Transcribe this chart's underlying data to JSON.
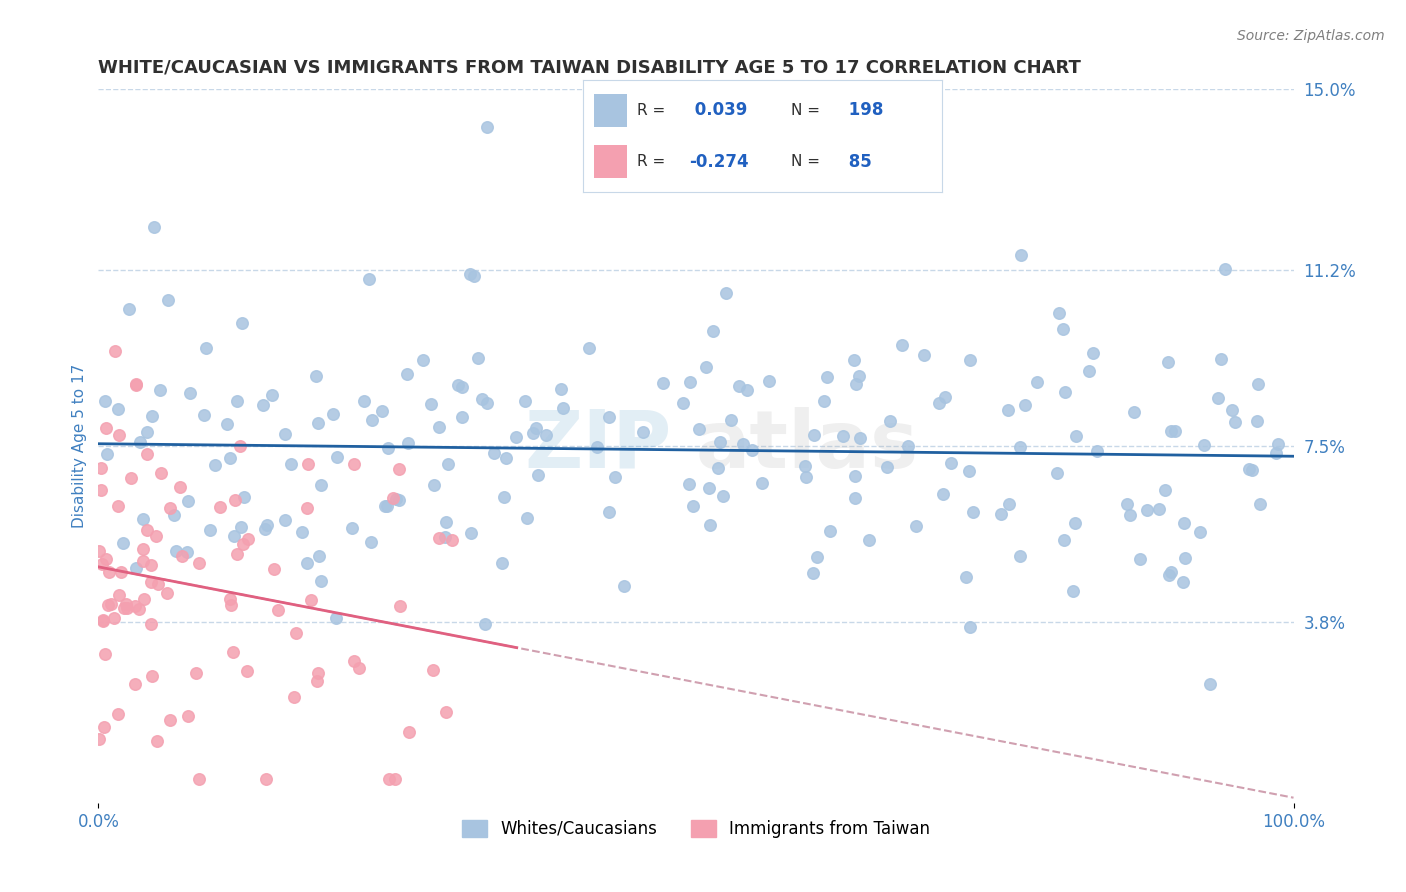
{
  "title": "WHITE/CAUCASIAN VS IMMIGRANTS FROM TAIWAN DISABILITY AGE 5 TO 17 CORRELATION CHART",
  "source": "Source: ZipAtlas.com",
  "ylabel": "Disability Age 5 to 17",
  "xmin": 0.0,
  "xmax": 100.0,
  "ymin": 0.0,
  "ymax": 15.0,
  "yticks": [
    0.0,
    3.8,
    7.5,
    11.2,
    15.0
  ],
  "blue_R": 0.039,
  "blue_N": 198,
  "pink_R": -0.274,
  "pink_N": 85,
  "blue_color": "#a8c4e0",
  "pink_color": "#f4a0b0",
  "blue_line_color": "#2060a0",
  "pink_line_color": "#e06080",
  "pink_line_dashed_color": "#d0a0b0",
  "legend_blue_label": "Whites/Caucasians",
  "legend_pink_label": "Immigrants from Taiwan",
  "watermark_blue": "#4090c0",
  "watermark_gray": "#b0b0b0",
  "title_color": "#303030",
  "axis_label_color": "#4080c0",
  "tick_label_color": "#4080c0",
  "grid_color": "#c8d8e8",
  "background_color": "#ffffff",
  "seed": 42,
  "blue_y_mean": 7.3,
  "pink_y_mean": 4.5
}
